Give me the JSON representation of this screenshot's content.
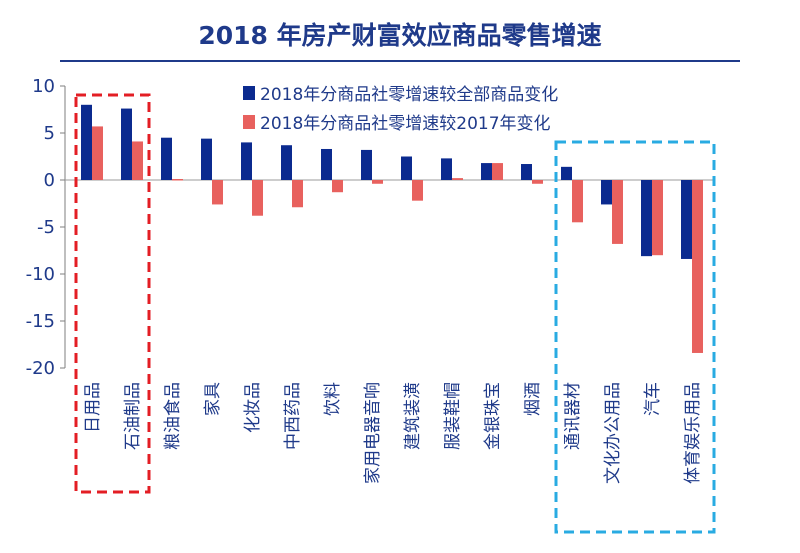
{
  "chart_data": {
    "type": "bar",
    "title": "2018 年房产财富效应商品零售增速",
    "categories": [
      "日用品",
      "石油制品",
      "粮油食品",
      "家具",
      "化妆品",
      "中西药品",
      "饮料",
      "家用电器音响",
      "建筑装潢",
      "服装鞋帽",
      "金银珠宝",
      "烟酒",
      "通讯器材",
      "文化办公用品",
      "汽车",
      "体育娱乐用品"
    ],
    "series": [
      {
        "name": "2018年分商品社零增速较全部商品变化",
        "color": "#0b2a8f",
        "values": [
          8.0,
          7.6,
          4.5,
          4.4,
          4.0,
          3.7,
          3.3,
          3.2,
          2.5,
          2.3,
          1.8,
          1.7,
          1.4,
          -2.6,
          -8.1,
          -8.4
        ]
      },
      {
        "name": "2018年分商品社零增速较2017年变化",
        "color": "#e8615e",
        "values": [
          5.7,
          4.1,
          0.0,
          -2.6,
          -3.8,
          -2.9,
          -1.3,
          -0.4,
          -2.2,
          0.2,
          1.8,
          -0.4,
          -4.5,
          -6.8,
          -8.0,
          -18.4
        ]
      }
    ],
    "y_ticks": [
      "10",
      "5",
      "0",
      "-5",
      "-10",
      "-15",
      "-20"
    ],
    "ylim": [
      -20,
      10
    ],
    "xlabel": "",
    "ylabel": "",
    "legend_position": "top-right",
    "highlight_colors": {
      "left_box": "#e31e24",
      "right_box": "#29abe2"
    },
    "grid": false
  }
}
